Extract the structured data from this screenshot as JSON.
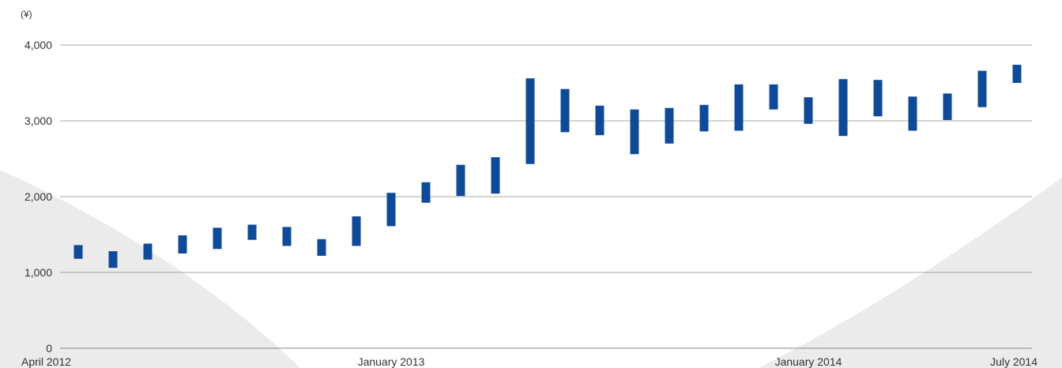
{
  "colors": {
    "bar": "#0d4a9b",
    "gridline": "#8a8a8a",
    "background_arc": "#ebebeb",
    "text": "#333333"
  },
  "chart_data": {
    "type": "bar",
    "subtype": "floating-range",
    "title": "",
    "ylabel": "(¥)",
    "xlabel": "",
    "ylim": [
      0,
      4000
    ],
    "yticks": [
      {
        "value": 0,
        "label": "0"
      },
      {
        "value": 1000,
        "label": "1,000"
      },
      {
        "value": 2000,
        "label": "2,000"
      },
      {
        "value": 3000,
        "label": "3,000"
      },
      {
        "value": 4000,
        "label": "4,000"
      }
    ],
    "xticks": [
      {
        "index": 0,
        "label": "April 2012"
      },
      {
        "index": 9,
        "label": "January 2013"
      },
      {
        "index": 21,
        "label": "January 2014"
      },
      {
        "index": 27,
        "label": "July 2014"
      }
    ],
    "grid": true,
    "categories": [
      "2012-04",
      "2012-05",
      "2012-06",
      "2012-07",
      "2012-08",
      "2012-09",
      "2012-10",
      "2012-11",
      "2012-12",
      "2013-01",
      "2013-02",
      "2013-03",
      "2013-04",
      "2013-05",
      "2013-06",
      "2013-07",
      "2013-08",
      "2013-09",
      "2013-10",
      "2013-11",
      "2013-12",
      "2014-01",
      "2014-02",
      "2014-03",
      "2014-04",
      "2014-05",
      "2014-06",
      "2014-07"
    ],
    "series": [
      {
        "ranges": [
          [
            1180,
            1360
          ],
          [
            1060,
            1280
          ],
          [
            1170,
            1380
          ],
          [
            1250,
            1490
          ],
          [
            1310,
            1590
          ],
          [
            1430,
            1630
          ],
          [
            1350,
            1600
          ],
          [
            1220,
            1440
          ],
          [
            1350,
            1740
          ],
          [
            1610,
            2050
          ],
          [
            1920,
            2190
          ],
          [
            2010,
            2420
          ],
          [
            2040,
            2520
          ],
          [
            2430,
            3560
          ],
          [
            2850,
            3420
          ],
          [
            2810,
            3200
          ],
          [
            2560,
            3150
          ],
          [
            2700,
            3170
          ],
          [
            2860,
            3210
          ],
          [
            2870,
            3480
          ],
          [
            3150,
            3480
          ],
          [
            2960,
            3310
          ],
          [
            2800,
            3550
          ],
          [
            3060,
            3540
          ],
          [
            2870,
            3320
          ],
          [
            3010,
            3360
          ],
          [
            3180,
            3660
          ],
          [
            3500,
            3740
          ]
        ]
      }
    ]
  }
}
